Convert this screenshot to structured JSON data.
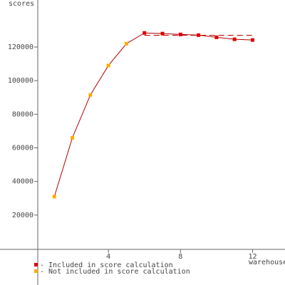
{
  "chart_data": {
    "type": "line",
    "x_label": "warehouses",
    "y_label": "scores",
    "x": [
      1,
      2,
      3,
      4,
      5,
      6,
      7,
      8,
      9,
      10,
      11,
      12
    ],
    "values": [
      31000,
      66000,
      91500,
      109000,
      122000,
      128400,
      128000,
      127500,
      127100,
      125800,
      124600,
      124200
    ],
    "included": [
      false,
      false,
      false,
      false,
      false,
      true,
      true,
      true,
      true,
      true,
      true,
      true
    ],
    "line_color": "#b00000",
    "legend": [
      {
        "label": "- Included in score calculation",
        "color": "#dd0000"
      },
      {
        "label": "- Not included in score calculation",
        "color": "#ffaa00"
      }
    ],
    "reference_line": {
      "value": 127000,
      "from": 6,
      "to": 12,
      "color": "#b00000"
    },
    "xlim": [
      0,
      13.8
    ],
    "ylim": [
      0,
      148000
    ],
    "xticks": [
      4,
      8,
      12
    ],
    "yticks": [
      20000,
      40000,
      60000,
      80000,
      100000,
      120000
    ]
  }
}
